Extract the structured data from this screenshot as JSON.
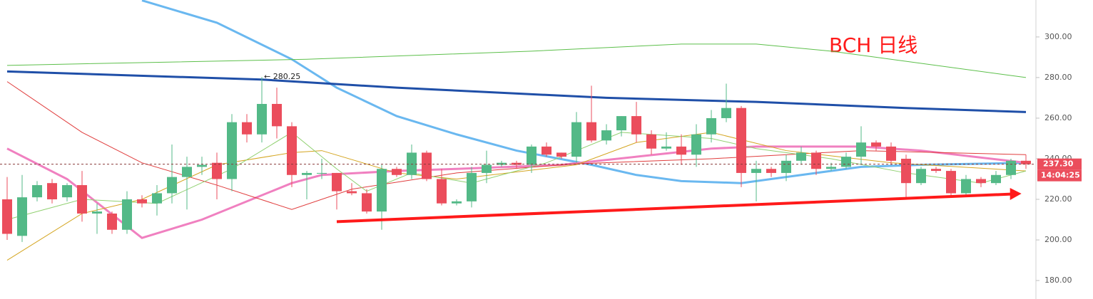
{
  "chart_data": {
    "type": "candlestick",
    "title": "BCH 日线",
    "title_color": "#ff1a1a",
    "up_color": "#53b987",
    "down_color": "#eb4d5c",
    "ylim": [
      170.9,
      318.2
    ],
    "yticks": [
      {
        "value": 180,
        "label": "180.00"
      },
      {
        "value": 200,
        "label": "200.00"
      },
      {
        "value": 220,
        "label": "220.00"
      },
      {
        "value": 240,
        "label": "240.00"
      },
      {
        "value": 260,
        "label": "260.00"
      },
      {
        "value": 280,
        "label": "280.00"
      },
      {
        "value": 300,
        "label": "300.00"
      }
    ],
    "candles": {
      "open": [
        220,
        202,
        221,
        228,
        221,
        227,
        213,
        213,
        205,
        220,
        218,
        223,
        231,
        236,
        238,
        230,
        258,
        252,
        267,
        256,
        232,
        233,
        233,
        224,
        223,
        214,
        235,
        232,
        243,
        230,
        218,
        219,
        233,
        237,
        238,
        237,
        246,
        243,
        241,
        258,
        249,
        254,
        261,
        252,
        245,
        246,
        242,
        252,
        260,
        265,
        233,
        235,
        233,
        239,
        243,
        235,
        236,
        241,
        248,
        246,
        240,
        228,
        235,
        234,
        223,
        230,
        228,
        232,
        239
      ],
      "high": [
        231,
        232,
        229,
        230,
        228,
        234,
        218,
        214,
        224,
        222,
        227,
        247,
        241,
        241,
        243,
        262,
        262,
        280.25,
        275,
        258,
        234,
        240,
        233,
        228,
        225,
        237,
        236,
        247,
        244,
        235,
        220,
        236,
        244,
        239,
        239,
        247,
        248,
        243,
        263,
        276,
        257,
        261,
        268,
        254,
        253,
        252,
        257,
        264,
        277,
        266,
        239,
        236,
        242,
        246,
        244,
        238,
        243,
        256,
        249,
        248,
        242,
        236,
        236,
        235,
        232,
        231,
        234,
        240,
        242
      ],
      "low": [
        200,
        199,
        219,
        218,
        219,
        209,
        203,
        203,
        203,
        216,
        212,
        218,
        215,
        232,
        220,
        224,
        248,
        248,
        250,
        226,
        220,
        230,
        215,
        222,
        213,
        205,
        231,
        230,
        229,
        217,
        217,
        216,
        228,
        236,
        235,
        233,
        241,
        240,
        238,
        248,
        247,
        251,
        248,
        242,
        244,
        237,
        236,
        248,
        258,
        226,
        219,
        231,
        229,
        237,
        232,
        234,
        235,
        237,
        244,
        237,
        220,
        227,
        233,
        222,
        222,
        226,
        227,
        230,
        235
      ],
      "close": [
        203,
        221,
        227,
        220,
        227,
        213,
        214,
        205,
        220,
        218,
        223,
        231,
        236,
        237,
        230,
        258,
        252,
        267,
        256,
        232,
        233,
        233,
        224,
        223,
        214,
        235,
        232,
        243,
        230,
        218,
        219,
        233,
        237,
        238,
        237,
        246,
        242,
        241,
        258,
        249,
        254,
        261,
        252,
        245,
        246,
        242,
        252,
        260,
        265,
        233,
        235,
        233,
        239,
        243,
        235,
        236,
        241,
        248,
        246,
        239,
        228,
        235,
        234,
        223,
        230,
        228,
        232,
        239,
        237.3
      ]
    },
    "overlays": [
      {
        "color": "#6ab8f0",
        "x": [
          9,
          14,
          19,
          22,
          26,
          30,
          34,
          39,
          42,
          45,
          49,
          52,
          57,
          61,
          68
        ],
        "values": [
          318,
          307,
          289,
          275,
          261,
          252,
          244,
          237,
          232,
          229,
          228,
          231,
          236,
          237,
          238
        ]
      },
      {
        "color": "#1f4fa8",
        "x": [
          0,
          17,
          26,
          40,
          50,
          60,
          68
        ],
        "values": [
          283,
          279,
          275,
          270,
          268,
          265,
          263
        ]
      },
      {
        "color": "#5cbf4a",
        "x": [
          0,
          20,
          35,
          45,
          50,
          55,
          60,
          68
        ],
        "values": [
          286,
          289,
          293,
          296.5,
          296.5,
          293,
          288,
          280
        ]
      },
      {
        "color": "#f080c0",
        "x": [
          0,
          4,
          9,
          13,
          19,
          21,
          26,
          30,
          37,
          42,
          47,
          50,
          57,
          61,
          68
        ],
        "values": [
          245,
          230,
          201,
          210,
          228,
          232,
          234,
          235,
          237,
          241,
          245,
          246,
          246,
          244,
          238
        ]
      },
      {
        "color": "#e03c3c",
        "x": [
          0,
          5,
          9,
          14,
          19,
          23,
          30,
          38,
          47,
          57,
          68
        ],
        "values": [
          278,
          253,
          238,
          227,
          215,
          225,
          233,
          237.5,
          240,
          244,
          242
        ]
      },
      {
        "color": "#d4a520",
        "x": [
          0,
          5,
          9,
          14,
          19,
          21,
          26,
          30,
          38,
          42,
          47,
          52,
          59,
          68
        ],
        "values": [
          190,
          213,
          220,
          237,
          243,
          244,
          233,
          230,
          237,
          248,
          253,
          244,
          238,
          234
        ]
      },
      {
        "color": "#90d070",
        "x": [
          0,
          5,
          10,
          15,
          19,
          22,
          24,
          27,
          31,
          36,
          41,
          47,
          50,
          55,
          60,
          65,
          68
        ],
        "values": [
          210,
          220,
          218,
          235,
          253,
          235,
          224,
          233,
          228,
          238,
          253,
          250,
          245,
          240,
          233,
          228,
          234
        ]
      }
    ],
    "trend_line": {
      "color": "#ff1a1a",
      "x": [
        22,
        67.7
      ],
      "values": [
        209,
        222.8
      ]
    },
    "high_annotation": {
      "value": 280.25,
      "label": "← 280.25"
    },
    "last_price": {
      "value": 237.3,
      "label": "237.30"
    },
    "countdown": "14:04:25"
  }
}
